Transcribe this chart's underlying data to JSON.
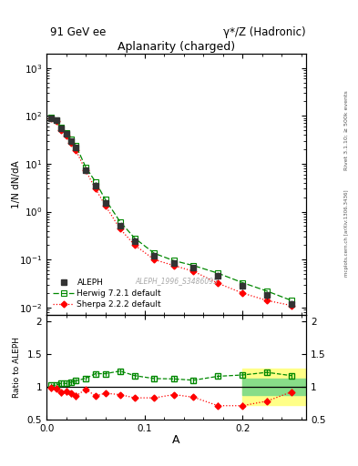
{
  "title_top_left": "91 GeV ee",
  "title_top_right": "γ*/Z (Hadronic)",
  "plot_title": "Aplanarity (charged)",
  "xlabel": "A",
  "ylabel_main": "1/N dN/dA",
  "ylabel_ratio": "Ratio to ALEPH",
  "watermark": "ALEPH_1996_S3486095",
  "right_label_top": "Rivet 3.1.10; ≥ 500k events",
  "right_label_mid": "mcplots.cern.ch [arXiv:1306.3436]",
  "aleph_x": [
    0.005,
    0.01,
    0.015,
    0.02,
    0.025,
    0.03,
    0.04,
    0.05,
    0.06,
    0.075,
    0.09,
    0.11,
    0.13,
    0.15,
    0.175,
    0.2,
    0.225,
    0.25
  ],
  "aleph_y": [
    90.0,
    80.0,
    55.0,
    42.0,
    30.0,
    22.0,
    7.5,
    3.5,
    1.5,
    0.5,
    0.24,
    0.12,
    0.085,
    0.068,
    0.045,
    0.028,
    0.018,
    0.012
  ],
  "aleph_yerr": [
    5.0,
    4.0,
    3.0,
    2.5,
    2.0,
    1.5,
    0.6,
    0.35,
    0.15,
    0.06,
    0.03,
    0.015,
    0.01,
    0.008,
    0.006,
    0.004,
    0.003,
    0.002
  ],
  "herwig_x": [
    0.005,
    0.01,
    0.015,
    0.02,
    0.025,
    0.03,
    0.04,
    0.05,
    0.06,
    0.075,
    0.09,
    0.11,
    0.13,
    0.15,
    0.175,
    0.2,
    0.225,
    0.25
  ],
  "herwig_y": [
    92.0,
    82.0,
    58.0,
    44.0,
    32.0,
    24.0,
    8.5,
    4.2,
    1.8,
    0.62,
    0.28,
    0.135,
    0.095,
    0.075,
    0.052,
    0.033,
    0.022,
    0.014
  ],
  "sherpa_x": [
    0.005,
    0.01,
    0.015,
    0.02,
    0.025,
    0.03,
    0.04,
    0.05,
    0.06,
    0.075,
    0.09,
    0.11,
    0.13,
    0.15,
    0.175,
    0.2,
    0.225,
    0.25
  ],
  "sherpa_y": [
    88.0,
    78.0,
    50.0,
    39.0,
    27.0,
    19.0,
    7.2,
    3.0,
    1.35,
    0.44,
    0.2,
    0.1,
    0.075,
    0.057,
    0.032,
    0.02,
    0.014,
    0.011
  ],
  "herwig_ratio": [
    1.02,
    1.025,
    1.055,
    1.05,
    1.07,
    1.09,
    1.13,
    1.2,
    1.2,
    1.24,
    1.17,
    1.125,
    1.12,
    1.1,
    1.16,
    1.18,
    1.22,
    1.17
  ],
  "herwig_ratio_err": [
    0.04,
    0.04,
    0.04,
    0.04,
    0.04,
    0.04,
    0.04,
    0.04,
    0.04,
    0.04,
    0.04,
    0.04,
    0.04,
    0.04,
    0.04,
    0.04,
    0.04,
    0.04
  ],
  "sherpa_ratio": [
    0.98,
    0.975,
    0.91,
    0.93,
    0.9,
    0.86,
    0.96,
    0.86,
    0.9,
    0.88,
    0.83,
    0.83,
    0.88,
    0.84,
    0.71,
    0.71,
    0.78,
    0.92
  ],
  "sherpa_ratio_err": [
    0.05,
    0.05,
    0.05,
    0.05,
    0.05,
    0.05,
    0.04,
    0.04,
    0.04,
    0.04,
    0.04,
    0.04,
    0.04,
    0.04,
    0.05,
    0.05,
    0.05,
    0.05
  ],
  "aleph_color": "#333333",
  "herwig_color": "#008800",
  "sherpa_color": "#ff0000",
  "band_yellow_xstart": 0.2,
  "band_yellow_ylo": 0.72,
  "band_yellow_yhi": 1.28,
  "band_green_xstart": 0.2,
  "band_green_ylo": 0.88,
  "band_green_yhi": 1.12,
  "xlim": [
    0.0,
    0.265
  ],
  "ylim_main": [
    0.007,
    2000
  ],
  "ylim_ratio": [
    0.5,
    2.1
  ],
  "bg_color": "#ffffff"
}
